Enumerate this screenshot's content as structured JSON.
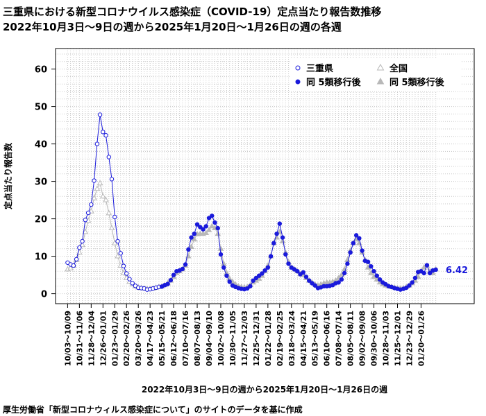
{
  "title_line1": "三重県における新型コロナウイルス感染症（COVID-19）定点当たり報告数推移",
  "title_line2": "2022年10月3日～9日の週から2025年1月20日～1月26日の週の各週",
  "source_note": "厚生労働省「新型コロナウィルス感染症について」のサイトのデータを基に作成",
  "colors": {
    "mie": "#1a1adb",
    "national": "#b8b8b8",
    "grid": "#c8c8c8"
  },
  "chart_data": {
    "type": "line",
    "xlabel": "2022年10月3日～9日の週から2025年1月20日～1月26日の週",
    "ylabel": "定点当たり報告数",
    "ylim": [
      0,
      65
    ],
    "yticks": [
      0,
      10,
      20,
      30,
      40,
      50,
      60
    ],
    "x_tick_labels": [
      "10/03～10/09",
      "10/31～11/06",
      "11/28～12/04",
      "12/26～01/01",
      "01/23～01/29",
      "02/20～02/26",
      "03/20～03/26",
      "04/17～04/23",
      "05/15～05/21",
      "06/12～06/18",
      "07/10～07/16",
      "08/07～08/13",
      "09/04～09/10",
      "10/02～10/08",
      "10/30～11/05",
      "11/27～12/03",
      "12/25～12/31",
      "01/22～01/28",
      "02/19～02/25",
      "03/18～03/24",
      "04/15～04/21",
      "05/13～05/19",
      "06/10～06/16",
      "07/08～07/14",
      "08/05～08/11",
      "09/02～09/08",
      "09/30～10/06",
      "10/28～11/03",
      "11/25～12/01",
      "12/23～12/29",
      "01/20～01/26"
    ],
    "last_value_label": "6.42",
    "legend": {
      "position": "top-right",
      "mie": "三重県",
      "national": "全国",
      "mie_after": "同 5類移行後",
      "national_after": "同 5類移行後"
    },
    "split_index": 32,
    "series": [
      {
        "name": "三重県",
        "values": [
          8.3,
          7.8,
          7.5,
          9.2,
          12.3,
          14.0,
          19.7,
          21.6,
          23.8,
          30.2,
          40.0,
          47.8,
          43.2,
          42.3,
          36.5,
          30.6,
          20.5,
          14.0,
          10.8,
          7.4,
          5.4,
          3.9,
          2.8,
          2.1,
          1.6,
          1.5,
          1.4,
          1.1,
          1.2,
          1.4,
          1.6,
          1.8,
          1.9,
          2.3,
          2.6,
          3.6,
          5.0,
          6.0,
          6.2,
          6.6,
          7.8,
          11.8,
          15.0,
          16.0,
          18.5,
          17.8,
          17.2,
          18.0,
          20.2,
          20.8,
          19.0,
          17.5,
          10.5,
          7.0,
          4.8,
          3.2,
          2.2,
          1.8,
          1.5,
          1.3,
          1.2,
          1.4,
          2.0,
          3.5,
          4.2,
          4.8,
          5.4,
          6.2,
          7.0,
          10.0,
          13.5,
          16.0,
          18.7,
          15.0,
          10.5,
          8.0,
          7.0,
          6.5,
          6.0,
          5.2,
          5.7,
          4.5,
          3.5,
          2.8,
          2.2,
          1.5,
          1.7,
          2.0,
          2.0,
          2.1,
          2.3,
          2.8,
          3.0,
          3.8,
          5.5,
          8.0,
          11.0,
          13.5,
          15.6,
          14.8,
          11.5,
          8.8,
          8.5,
          7.3,
          6.0,
          4.8,
          3.8,
          3.0,
          2.5,
          2.0,
          1.8,
          1.5,
          1.3,
          1.1,
          1.3,
          1.6,
          2.2,
          3.0,
          4.2,
          5.8,
          6.0,
          5.5,
          7.6,
          5.5,
          6.2,
          6.42
        ]
      },
      {
        "name": "全国",
        "values": [
          6.5,
          6.8,
          7.5,
          9.0,
          11.0,
          13.0,
          16.5,
          19.5,
          22.0,
          25.5,
          28.0,
          29.5,
          26.0,
          25.0,
          21.5,
          17.5,
          13.5,
          10.0,
          7.5,
          5.5,
          4.2,
          3.2,
          2.5,
          2.0,
          1.7,
          1.5,
          1.4,
          1.3,
          1.3,
          1.4,
          1.6,
          1.8,
          2.0,
          2.3,
          2.8,
          3.5,
          4.5,
          5.5,
          6.0,
          6.5,
          7.5,
          10.0,
          12.5,
          14.5,
          15.9,
          16.0,
          16.0,
          16.2,
          17.0,
          18.0,
          17.5,
          16.0,
          12.0,
          8.0,
          5.5,
          4.0,
          3.2,
          2.5,
          2.0,
          1.8,
          1.7,
          1.8,
          2.3,
          3.0,
          3.5,
          4.0,
          4.8,
          6.0,
          7.5,
          10.0,
          13.5,
          15.0,
          16.5,
          14.0,
          11.0,
          8.5,
          7.0,
          6.5,
          6.0,
          5.2,
          5.0,
          4.2,
          3.5,
          3.0,
          2.5,
          2.2,
          2.5,
          2.8,
          3.0,
          3.0,
          3.2,
          3.5,
          4.2,
          5.0,
          6.5,
          9.0,
          11.5,
          13.5,
          14.5,
          13.5,
          11.0,
          9.0,
          7.0,
          5.5,
          4.5,
          3.8,
          3.0,
          2.5,
          2.2,
          2.0,
          1.8,
          1.6,
          1.5,
          1.4,
          1.5,
          1.8,
          2.2,
          2.8,
          3.5,
          4.5,
          6.0,
          7.0,
          7.5,
          6.0,
          5.5,
          6.5
        ]
      }
    ]
  }
}
